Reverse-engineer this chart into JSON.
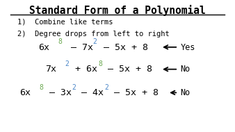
{
  "title": "Standard Form of a Polynomial",
  "bg_color": "#ffffff",
  "black": "#000000",
  "green": "#6aa84f",
  "blue": "#4a86c8",
  "bullet1": "1)  Combine like terms",
  "bullet2": "2)  Degree drops from left to right",
  "line1_yes": "Yes",
  "line2_no": "No",
  "line3_no": "No"
}
